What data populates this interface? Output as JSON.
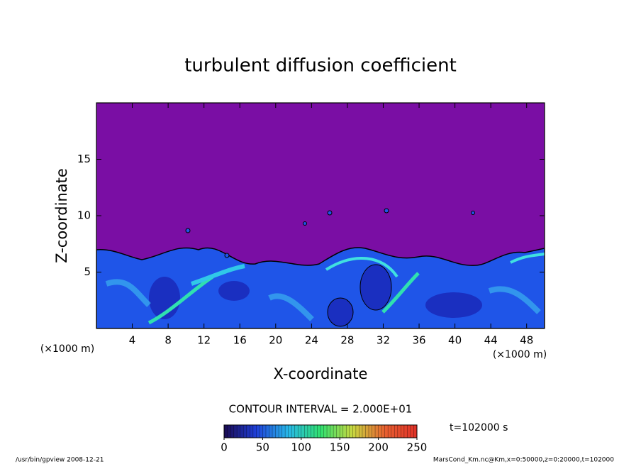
{
  "chart_data": {
    "type": "contour",
    "title": "turbulent diffusion coefficient",
    "xlabel": "X-coordinate",
    "ylabel": "Z-coordinate",
    "xunit": "(×1000 m)",
    "yunit": "(×1000 m)",
    "xlim": [
      0,
      50
    ],
    "xticks": [
      4,
      8,
      12,
      16,
      20,
      24,
      28,
      32,
      36,
      40,
      44,
      48
    ],
    "ylim": [
      0,
      20
    ],
    "yticks": [
      5,
      10,
      15
    ],
    "contour_interval": "CONTOUR INTERVAL = 2.000E+01",
    "time": "t=102000 s",
    "colorbar": {
      "clim": [
        0,
        250
      ],
      "ticks": [
        0,
        50,
        100,
        150,
        200,
        250
      ],
      "colors": [
        "#1a0a50",
        "#1f3fd8",
        "#28b8e8",
        "#30e070",
        "#c8d840",
        "#e86030",
        "#e03028"
      ]
    },
    "footer_left": "/usr/bin/gpview  2008-12-21",
    "footer_right": "MarsCond_Km.nc@Km,x=0:50000,z=0:20000,t=102000"
  }
}
